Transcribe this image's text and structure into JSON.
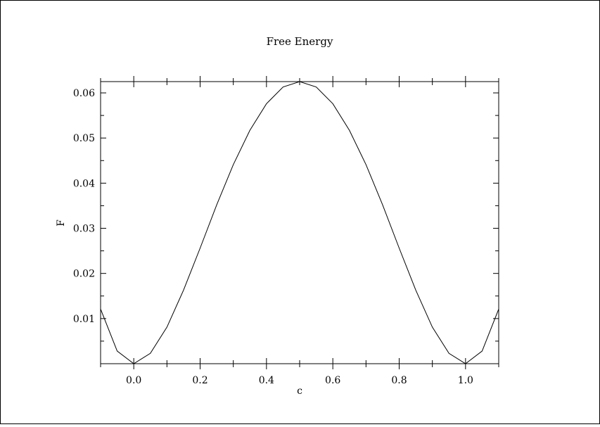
{
  "chart_data": {
    "type": "line",
    "title": "Free Energy",
    "xlabel": "c",
    "ylabel": "F",
    "xlim": [
      -0.1,
      1.1
    ],
    "ylim": [
      0.0,
      0.0625
    ],
    "xticks": [
      0.0,
      0.2,
      0.4,
      0.6,
      0.8,
      1.0
    ],
    "xtick_labels": [
      "0.0",
      "0.2",
      "0.4",
      "0.6",
      "0.8",
      "1.0"
    ],
    "yticks": [
      0.01,
      0.02,
      0.03,
      0.04,
      0.05,
      0.06
    ],
    "ytick_labels": [
      "0.01",
      "0.02",
      "0.03",
      "0.04",
      "0.05",
      "0.06"
    ],
    "grid": false,
    "legend": "none",
    "series": [
      {
        "x": [
          -0.1,
          -0.05,
          0.0,
          0.05,
          0.1,
          0.15,
          0.2,
          0.25,
          0.3,
          0.35,
          0.4,
          0.45,
          0.5,
          0.55,
          0.6,
          0.65,
          0.7,
          0.75,
          0.8,
          0.85,
          0.9,
          0.95,
          1.0,
          1.05,
          1.1
        ],
        "y": [
          0.0121,
          0.0028,
          0.0,
          0.0023,
          0.0081,
          0.0163,
          0.0256,
          0.0352,
          0.0441,
          0.0517,
          0.0576,
          0.0613,
          0.0625,
          0.0613,
          0.0576,
          0.0517,
          0.0441,
          0.0352,
          0.0256,
          0.0163,
          0.0081,
          0.0023,
          0.0,
          0.0028,
          0.0121
        ]
      }
    ]
  }
}
